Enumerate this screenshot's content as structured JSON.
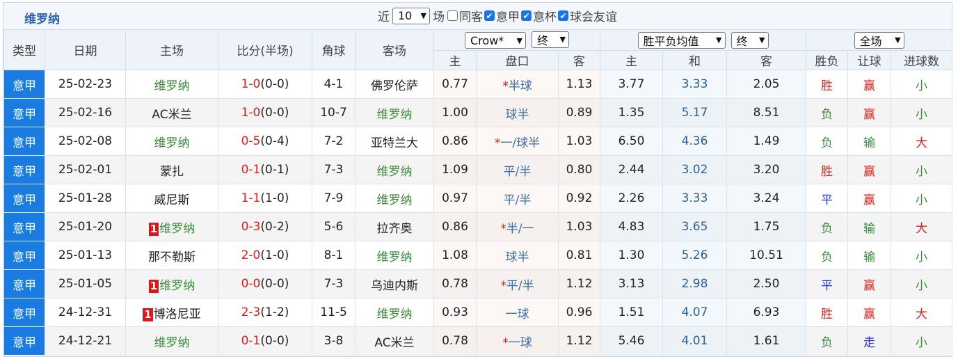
{
  "header": {
    "title": "维罗纳",
    "filter": {
      "prefix": "近",
      "count": "10",
      "suffix": "场",
      "options": [
        {
          "label": "同客",
          "checked": false
        },
        {
          "label": "意甲",
          "checked": true
        },
        {
          "label": "意杯",
          "checked": true
        },
        {
          "label": "球会友谊",
          "checked": true
        }
      ]
    }
  },
  "table": {
    "columns": {
      "type": "类型",
      "date": "日期",
      "home": "主场",
      "score": "比分(半场)",
      "corners": "角球",
      "away": "客场"
    },
    "groups": {
      "handicap_company": "Crow*",
      "handicap_stage": "终",
      "odds_kind": "胜平负均值",
      "odds_stage": "终",
      "result_scope": "全场"
    },
    "subcolumns": [
      "主",
      "盘口",
      "客",
      "主",
      "和",
      "客",
      "胜负",
      "让球",
      "进球数"
    ],
    "team_color": "#3a8a3a",
    "rows": [
      {
        "type": "意甲",
        "date": "25-02-23",
        "home": "维罗纳",
        "score": "1-0",
        "half": "(0-0)",
        "corners": "4-1",
        "away": "佛罗伦萨",
        "odds_home": "0.77",
        "star": "*",
        "handicap": "半球",
        "odds_away": "1.13",
        "win": "3.77",
        "draw": "3.33",
        "lose": "2.05",
        "result": "胜",
        "result_color": "#e0201a",
        "handicap_result": "赢",
        "handicap_result_color": "#e0201a",
        "goals": "小",
        "goals_color": "#3a8a3a"
      },
      {
        "type": "意甲",
        "date": "25-02-16",
        "home": "AC米兰",
        "score": "1-0",
        "half": "(0-0)",
        "corners": "10-7",
        "away": "维罗纳",
        "odds_home": "1.00",
        "handicap": "球半",
        "odds_away": "0.89",
        "win": "1.35",
        "draw": "5.17",
        "lose": "8.51",
        "result": "负",
        "result_color": "#3a8a3a",
        "handicap_result": "赢",
        "handicap_result_color": "#e0201a",
        "goals": "小",
        "goals_color": "#3a8a3a"
      },
      {
        "type": "意甲",
        "date": "25-02-08",
        "home": "维罗纳",
        "score": "0-5",
        "half": "(0-4)",
        "corners": "7-2",
        "away": "亚特兰大",
        "odds_home": "0.86",
        "star": "*",
        "handicap": "一/球半",
        "odds_away": "1.03",
        "win": "6.50",
        "draw": "4.36",
        "lose": "1.49",
        "result": "负",
        "result_color": "#3a8a3a",
        "handicap_result": "输",
        "handicap_result_color": "#3a8a3a",
        "goals": "大",
        "goals_color": "#e0201a"
      },
      {
        "type": "意甲",
        "date": "25-02-01",
        "home": "蒙扎",
        "score": "0-1",
        "half": "(0-1)",
        "corners": "7-3",
        "away": "维罗纳",
        "odds_home": "1.09",
        "handicap": "平/半",
        "odds_away": "0.80",
        "win": "2.44",
        "draw": "3.02",
        "lose": "3.20",
        "result": "胜",
        "result_color": "#e0201a",
        "handicap_result": "赢",
        "handicap_result_color": "#e0201a",
        "goals": "小",
        "goals_color": "#3a8a3a"
      },
      {
        "type": "意甲",
        "date": "25-01-28",
        "home": "威尼斯",
        "score": "1-1",
        "half": "(1-0)",
        "corners": "7-9",
        "away": "维罗纳",
        "odds_home": "0.97",
        "handicap": "平/半",
        "odds_away": "0.92",
        "win": "2.26",
        "draw": "3.33",
        "lose": "3.24",
        "result": "平",
        "result_color": "#2233dd",
        "handicap_result": "赢",
        "handicap_result_color": "#e0201a",
        "goals": "小",
        "goals_color": "#3a8a3a"
      },
      {
        "type": "意甲",
        "date": "25-01-20",
        "home_card": "1",
        "home": "维罗纳",
        "score": "0-3",
        "half": "(0-2)",
        "corners": "5-6",
        "away": "拉齐奥",
        "odds_home": "0.86",
        "star": "*",
        "handicap": "半/一",
        "odds_away": "1.03",
        "win": "4.83",
        "draw": "3.65",
        "lose": "1.75",
        "result": "负",
        "result_color": "#3a8a3a",
        "handicap_result": "输",
        "handicap_result_color": "#3a8a3a",
        "goals": "大",
        "goals_color": "#e0201a"
      },
      {
        "type": "意甲",
        "date": "25-01-13",
        "home": "那不勒斯",
        "score": "2-0",
        "half": "(1-0)",
        "corners": "8-1",
        "away": "维罗纳",
        "odds_home": "1.08",
        "handicap": "球半",
        "odds_away": "0.81",
        "win": "1.30",
        "draw": "5.26",
        "lose": "10.51",
        "result": "负",
        "result_color": "#3a8a3a",
        "handicap_result": "输",
        "handicap_result_color": "#3a8a3a",
        "goals": "小",
        "goals_color": "#3a8a3a"
      },
      {
        "type": "意甲",
        "date": "25-01-05",
        "home_card": "1",
        "home": "维罗纳",
        "score": "0-0",
        "half": "(0-0)",
        "corners": "7-3",
        "away": "乌迪内斯",
        "odds_home": "0.78",
        "star": "*",
        "handicap": "平/半",
        "odds_away": "1.12",
        "win": "3.13",
        "draw": "2.98",
        "lose": "2.50",
        "result": "平",
        "result_color": "#2233dd",
        "handicap_result": "赢",
        "handicap_result_color": "#e0201a",
        "goals": "小",
        "goals_color": "#3a8a3a"
      },
      {
        "type": "意甲",
        "date": "24-12-31",
        "home_card": "1",
        "home": "博洛尼亚",
        "score": "2-3",
        "half": "(1-2)",
        "corners": "11-5",
        "away": "维罗纳",
        "odds_home": "0.93",
        "handicap": "一球",
        "odds_away": "0.96",
        "win": "1.51",
        "draw": "4.07",
        "lose": "6.93",
        "result": "胜",
        "result_color": "#e0201a",
        "handicap_result": "赢",
        "handicap_result_color": "#e0201a",
        "goals": "大",
        "goals_color": "#e0201a"
      },
      {
        "type": "意甲",
        "date": "24-12-21",
        "home": "维罗纳",
        "score": "0-1",
        "half": "(0-0)",
        "corners": "3-8",
        "away": "AC米兰",
        "odds_home": "0.78",
        "star": "*",
        "handicap": "一球",
        "odds_away": "1.12",
        "win": "5.46",
        "draw": "4.01",
        "lose": "1.61",
        "result": "负",
        "result_color": "#3a8a3a",
        "handicap_result": "走",
        "handicap_result_color": "#2233dd",
        "goals": "小",
        "goals_color": "#3a8a3a"
      }
    ]
  }
}
